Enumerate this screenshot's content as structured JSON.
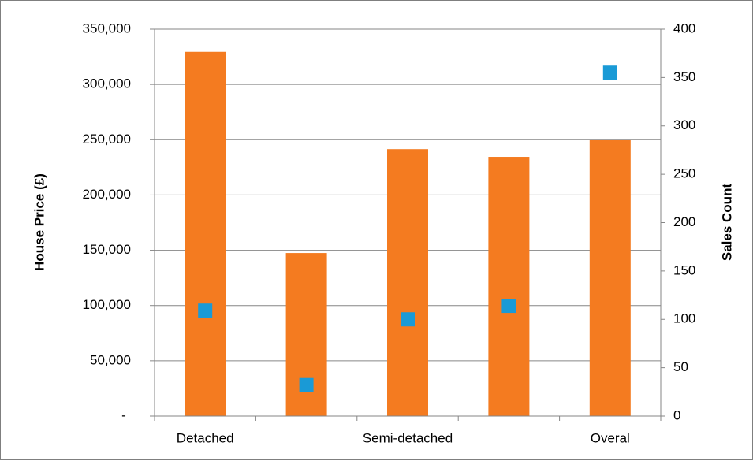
{
  "chart_data": {
    "type": "bar",
    "categories": [
      "Detached",
      "",
      "Semi-detached",
      "",
      "Overal"
    ],
    "x_tick_labels": [
      "Detached",
      "Semi-detached",
      "Overal"
    ],
    "series": [
      {
        "axis": "left",
        "type": "bar",
        "values": [
          329500,
          147500,
          241500,
          234500,
          249500
        ],
        "color": "#f47b20"
      },
      {
        "axis": "right",
        "type": "scatter",
        "values": [
          109,
          32,
          100,
          114,
          355
        ],
        "color": "#1a9ad6"
      }
    ],
    "ylabel": "House Price (£)",
    "y2label": "Sales Count",
    "ylim": [
      0,
      350000
    ],
    "y2lim": [
      0,
      400
    ],
    "y_ticks": [
      0,
      50000,
      100000,
      150000,
      200000,
      250000,
      300000,
      350000
    ],
    "y_tick_labels": [
      "-",
      "50,000",
      "100,000",
      "150,000",
      "200,000",
      "250,000",
      "300,000",
      "350,000"
    ],
    "y2_ticks": [
      0,
      50,
      100,
      150,
      200,
      250,
      300,
      350,
      400
    ],
    "y2_tick_labels": [
      "0",
      "50",
      "100",
      "150",
      "200",
      "250",
      "300",
      "350",
      "400"
    ],
    "grid": "horizontal",
    "legend": "none"
  }
}
